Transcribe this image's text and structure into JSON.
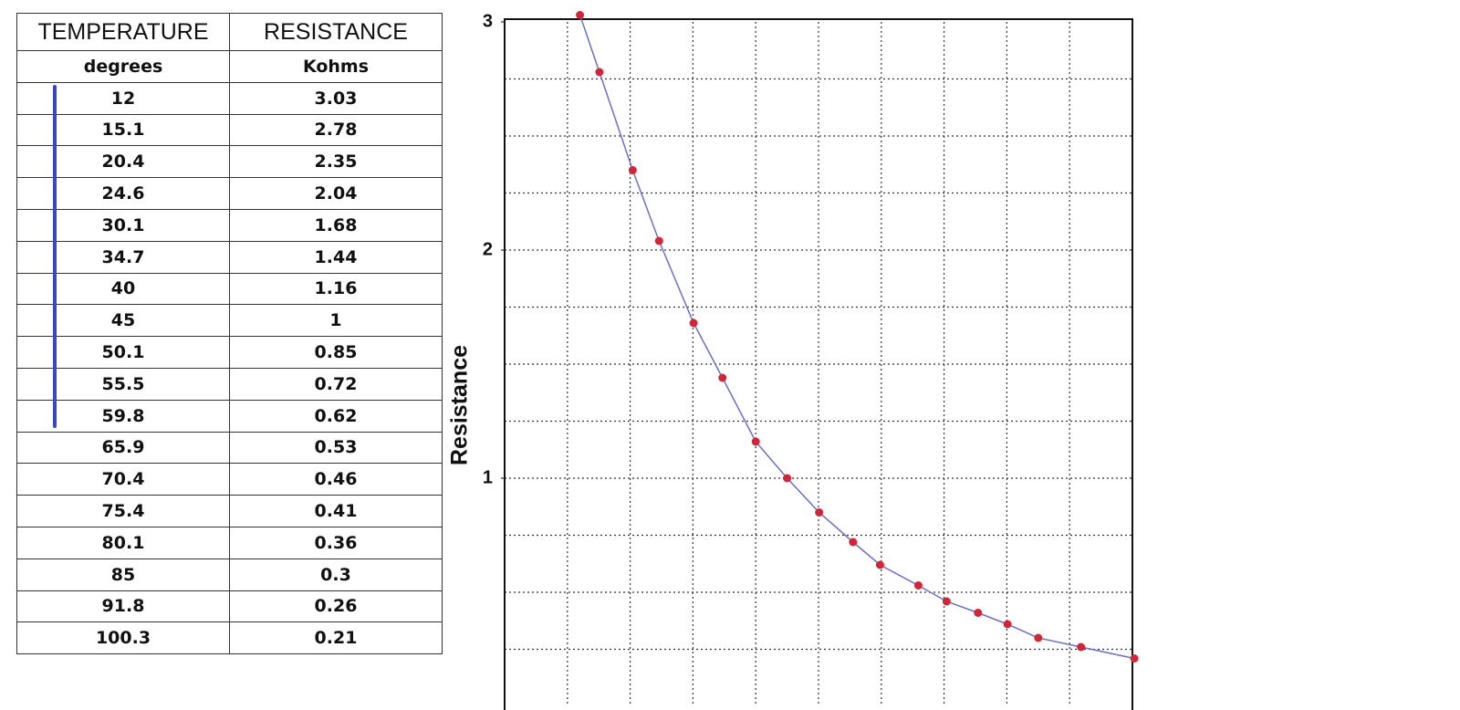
{
  "table": {
    "header": [
      "TEMPERATURE",
      "RESISTANCE"
    ],
    "units": [
      "degrees",
      "Kohms"
    ],
    "rows": [
      [
        12,
        3.03
      ],
      [
        15.1,
        2.78
      ],
      [
        20.4,
        2.35
      ],
      [
        24.6,
        2.04
      ],
      [
        30.1,
        1.68
      ],
      [
        34.7,
        1.44
      ],
      [
        40,
        1.16
      ],
      [
        45,
        1
      ],
      [
        50.1,
        0.85
      ],
      [
        55.5,
        0.72
      ],
      [
        59.8,
        0.62
      ],
      [
        65.9,
        0.53
      ],
      [
        70.4,
        0.46
      ],
      [
        75.4,
        0.41
      ],
      [
        80.1,
        0.36
      ],
      [
        85,
        0.3
      ],
      [
        91.8,
        0.26
      ],
      [
        100.3,
        0.21
      ]
    ]
  },
  "chart_data": {
    "type": "line",
    "y_label": "Resistance",
    "x": [
      12,
      15.1,
      20.4,
      24.6,
      30.1,
      34.7,
      40,
      45,
      50.1,
      55.5,
      59.8,
      65.9,
      70.4,
      75.4,
      80.1,
      85,
      91.8,
      100.3
    ],
    "values": [
      3.03,
      2.78,
      2.35,
      2.04,
      1.68,
      1.44,
      1.16,
      1,
      0.85,
      0.72,
      0.62,
      0.53,
      0.46,
      0.41,
      0.36,
      0.3,
      0.26,
      0.21
    ],
    "line_color": "#6a70c4",
    "marker_color": "#d0263a",
    "xlim": [
      0,
      100
    ],
    "ylim": [
      0,
      3
    ],
    "yticks": [
      1,
      2,
      3
    ],
    "xgrid": [
      10,
      20,
      30,
      40,
      50,
      60,
      70,
      80,
      90
    ],
    "ygrid": [
      0.25,
      0.5,
      0.75,
      1,
      1.25,
      1.5,
      1.75,
      2,
      2.25,
      2.5,
      2.75
    ],
    "grid": true
  }
}
